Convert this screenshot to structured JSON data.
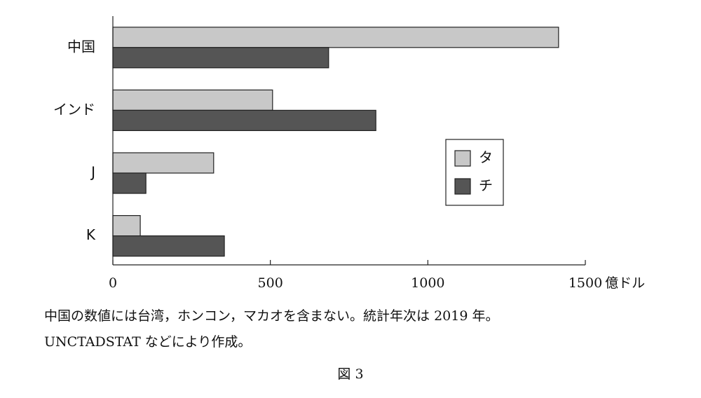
{
  "chart_data": {
    "type": "hbar",
    "categories": [
      "中国",
      "インド",
      "J",
      "K"
    ],
    "series": [
      {
        "name": "タ",
        "color": "#c8c8c8",
        "values": [
          1415,
          507,
          320,
          87
        ]
      },
      {
        "name": "チ",
        "color": "#555555",
        "values": [
          685,
          835,
          105,
          354
        ]
      }
    ],
    "xlim": [
      0,
      1500
    ],
    "xticks": [
      0,
      500,
      1000,
      1500
    ],
    "x_label": "億ドル",
    "legend": "right",
    "notes": [
      "中国の数値には台湾，ホンコン，マカオを含まない。統計年次は 2019 年。",
      "UNCTADSTAT などにより作成。"
    ],
    "caption": "図 3"
  }
}
